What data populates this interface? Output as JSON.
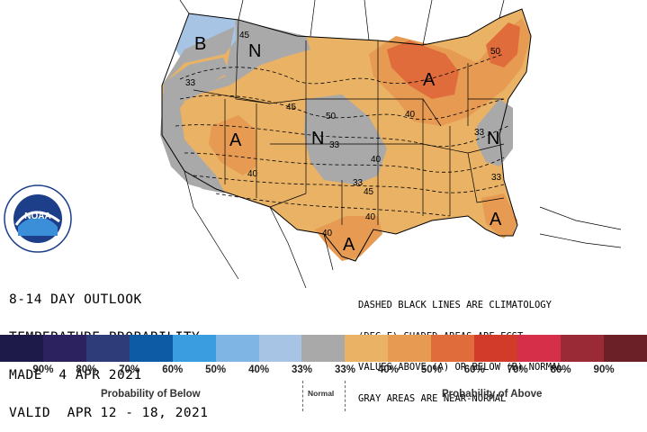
{
  "map": {
    "region_labels": [
      {
        "id": "pnw",
        "text": "B"
      },
      {
        "id": "nw",
        "text": "N"
      },
      {
        "id": "sw",
        "text": "A"
      },
      {
        "id": "plains",
        "text": "N"
      },
      {
        "id": "lakes",
        "text": "A"
      },
      {
        "id": "east",
        "text": "N"
      },
      {
        "id": "tx",
        "text": "A"
      },
      {
        "id": "fl",
        "text": "A"
      }
    ],
    "contour_labels": [
      {
        "id": "c45_nw",
        "text": "45"
      },
      {
        "id": "c33_nw",
        "text": "33"
      },
      {
        "id": "c45_rk",
        "text": "45"
      },
      {
        "id": "c50_p",
        "text": "50"
      },
      {
        "id": "c33_p",
        "text": "33"
      },
      {
        "id": "c40_sw",
        "text": "40"
      },
      {
        "id": "c40_gl",
        "text": "40"
      },
      {
        "id": "c50_ne",
        "text": "50"
      },
      {
        "id": "c33_ne",
        "text": "33"
      },
      {
        "id": "c33_s",
        "text": "33"
      },
      {
        "id": "c45_s",
        "text": "45"
      },
      {
        "id": "c40_tx",
        "text": "40"
      },
      {
        "id": "c40_tx2",
        "text": "40"
      },
      {
        "id": "c40_m",
        "text": "40"
      },
      {
        "id": "c33_p2",
        "text": "33"
      }
    ],
    "colors": {
      "below_33": "#a8c4e4",
      "normal": "#a9a9a9",
      "above_33": "#e9b265",
      "above_40": "#e69a52",
      "above_50": "#e06c3b",
      "outline": "#000000",
      "water": "#ffffff"
    },
    "logo_text": "NOAA"
  },
  "title": {
    "line1": "8-14 DAY OUTLOOK",
    "line2": "TEMPERATURE PROBABILITY",
    "line3": "MADE  4 APR 2021",
    "line4": "VALID  APR 12 - 18, 2021"
  },
  "note": {
    "line1": "DASHED BLACK LINES ARE CLIMATOLOGY",
    "line2": "(DEG F) SHADED AREAS ARE FCST",
    "line3": "VALUES ABOVE (A) OR BELOW (B) NORMAL",
    "line4": "GRAY AREAS ARE NEAR-NORMAL"
  },
  "legend": {
    "colors": [
      "#1d1a4a",
      "#2c2260",
      "#2e3c79",
      "#0d5aa5",
      "#3a9de0",
      "#7fb5e4",
      "#a8c4e4",
      "#a9a9a9",
      "#e9b265",
      "#e69a52",
      "#e06c3b",
      "#d23a2a",
      "#d62f4a",
      "#9a2a35",
      "#6b1f27"
    ],
    "labels": [
      "90%",
      "80%",
      "70%",
      "60%",
      "50%",
      "40%",
      "33%",
      "33%",
      "40%",
      "50%",
      "60%",
      "70%",
      "80%",
      "90%"
    ],
    "below_caption": "Probability of Below",
    "normal_caption": "Normal",
    "above_caption": "Probability of Above"
  }
}
